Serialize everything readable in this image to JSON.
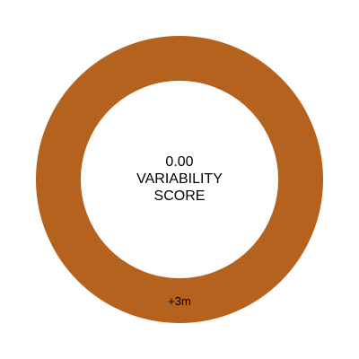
{
  "gauge": {
    "score_value": "0.00",
    "score_label_line1": "VARIABILITY",
    "score_label_line2": "SCORE",
    "segment_label": "+3m",
    "ring_color": "#b5621e",
    "fraction_filled": 1.0
  }
}
